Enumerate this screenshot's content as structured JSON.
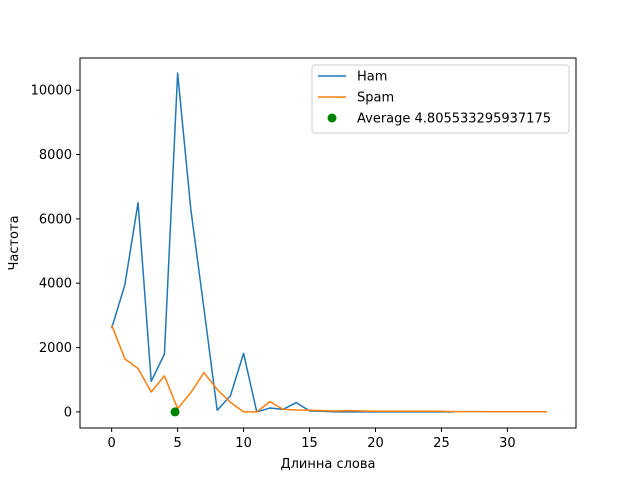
{
  "chart_data": {
    "type": "line",
    "xlabel": "Длинна слова",
    "ylabel": "Частота",
    "xlim": [
      -2.4,
      35.2
    ],
    "ylim": [
      -500,
      11000
    ],
    "xticks": [
      0,
      5,
      10,
      15,
      20,
      25,
      30
    ],
    "yticks": [
      0,
      2000,
      4000,
      6000,
      8000,
      10000
    ],
    "grid": false,
    "legend_position": "upper right",
    "series": [
      {
        "name": "Ham",
        "color": "#1f77b4",
        "x": [
          0,
          1,
          2,
          3,
          4,
          5,
          6,
          7,
          8,
          9,
          10,
          11,
          12,
          13,
          14,
          15,
          16,
          17,
          18,
          19,
          20,
          21,
          22,
          23,
          24,
          25,
          26
        ],
        "y": [
          2600,
          3950,
          6500,
          950,
          1800,
          10530,
          6300,
          3200,
          50,
          500,
          1820,
          0,
          120,
          80,
          290,
          30,
          20,
          0,
          0,
          0,
          0,
          0,
          0,
          0,
          0,
          0,
          0
        ]
      },
      {
        "name": "Spam",
        "color": "#ff7f0e",
        "x": [
          0,
          1,
          2,
          3,
          4,
          5,
          6,
          7,
          8,
          9,
          10,
          11,
          12,
          13,
          14,
          15,
          16,
          17,
          18,
          19,
          20,
          21,
          22,
          23,
          24,
          25,
          26,
          27,
          28,
          29,
          30,
          31,
          32,
          33
        ],
        "y": [
          2700,
          1650,
          1350,
          620,
          1120,
          100,
          600,
          1220,
          700,
          300,
          0,
          0,
          320,
          80,
          60,
          50,
          40,
          30,
          40,
          30,
          20,
          20,
          20,
          20,
          20,
          20,
          10,
          10,
          10,
          5,
          5,
          5,
          5,
          5
        ]
      }
    ],
    "points": [
      {
        "name": "Average 4.805533295937175",
        "color": "#008000",
        "x": 4.805533295937175,
        "y": 0
      }
    ]
  }
}
